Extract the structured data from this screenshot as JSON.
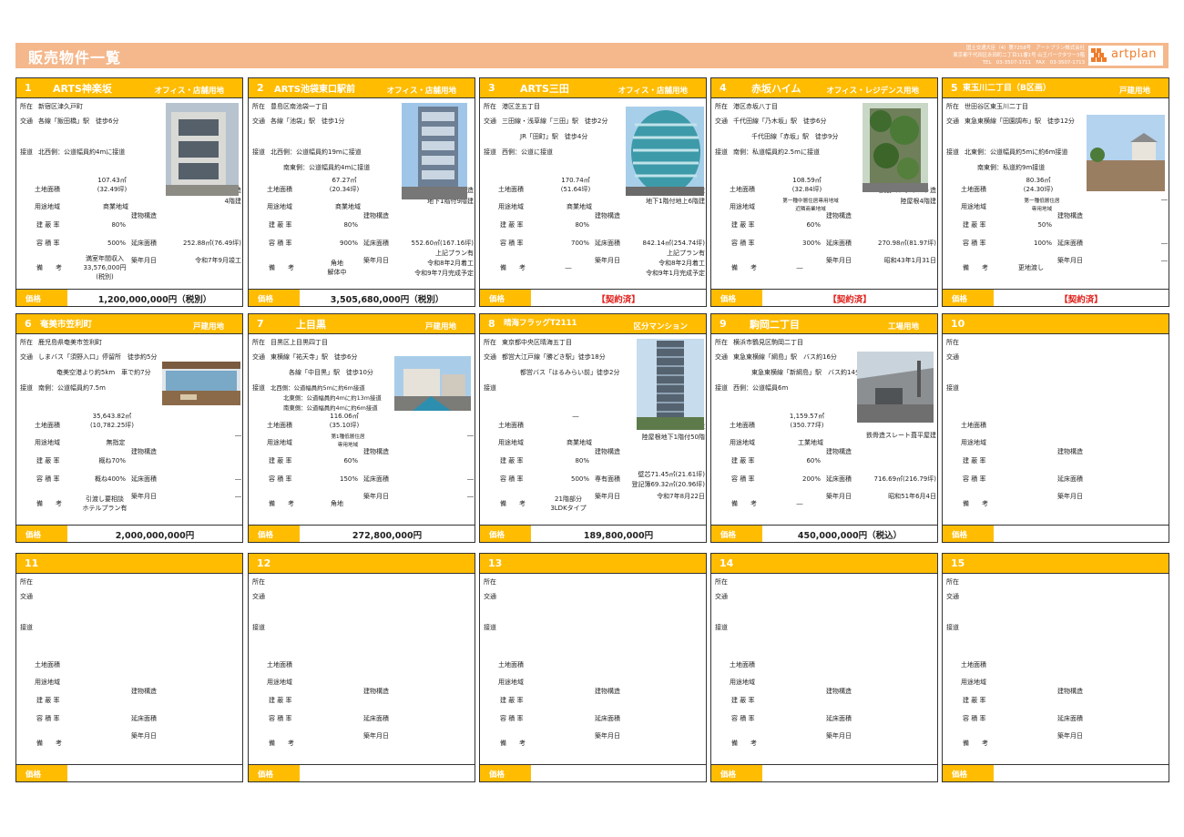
{
  "header": {
    "title": "販売物件一覧",
    "company_lines": [
      "国土交通大臣（4）第7258号　アートプラン株式会社",
      "東京都千代田区永田町二丁目11番1号 山王パークタワー3階",
      "TEL　03-3507-1711　FAX　03-3507-1713"
    ],
    "logo_text": "artplan"
  },
  "labels": {
    "address": "所在",
    "transit": "交通",
    "road": "接道",
    "land": "土地面積",
    "zoning": "用途地域",
    "bcr": "建 蔽 率",
    "far": "容 積 率",
    "remarks": "備　　考",
    "structure": "建物構造",
    "floor": "延床面積",
    "exclusive": "専有面積",
    "built": "築年月日",
    "price": "価格"
  },
  "listings": [
    {
      "num": "1",
      "name": "ARTS神楽坂",
      "type": "オフィス・店舗用地",
      "address": "新宿区津久戸町",
      "transit": [
        "各線「飯田橋」駅　徒歩6分"
      ],
      "road": [
        "北西側：公道幅員約4mに接道"
      ],
      "land": [
        "107.43㎡",
        "(32.49坪)"
      ],
      "zoning": [
        "商業地域"
      ],
      "bcr": "80%",
      "far": "500%",
      "remarks": [
        "満室年間収入",
        "33,576,000円",
        "(税別)"
      ],
      "structure": [
        "鉄筋コンクリート造",
        "4階建"
      ],
      "floor": [
        "252.88㎡(76.49坪)"
      ],
      "built": [
        "令和7年9月竣工"
      ],
      "price": "1,200,000,000円（税別）",
      "price_red": false
    },
    {
      "num": "2",
      "name": "ARTS池袋東口駅前",
      "type": "オフィス・店舗用地",
      "address": "豊島区南池袋一丁目",
      "transit": [
        "各線「池袋」駅　徒歩1分"
      ],
      "road": [
        "北西側：公道幅員約19mに接道",
        "南東側：公道幅員約4mに接道"
      ],
      "land": [
        "67.27㎡",
        "(20.34坪)"
      ],
      "zoning": [
        "商業地域"
      ],
      "bcr": "80%",
      "far": "900%",
      "remarks": [
        "角地",
        "解体中"
      ],
      "structure": [
        "鉄骨造",
        "地下1階付9階建"
      ],
      "floor": [
        "552.60㎡(167.16坪)"
      ],
      "built": [
        "上記プラン有",
        "令和8年2月着工",
        "令和9年7月完成予定"
      ],
      "price": "3,505,680,000円（税別）",
      "price_red": false
    },
    {
      "num": "3",
      "name": "ARTS三田",
      "type": "オフィス・店舗用地",
      "address": "港区芝五丁目",
      "transit": [
        "三田線・浅草線「三田」駅　徒歩2分",
        "JR「田町」駅　徒歩4分"
      ],
      "road": [
        "西側：公道に接道"
      ],
      "land": [
        "170.74㎡",
        "(51.64坪)"
      ],
      "zoning": [
        "商業地域"
      ],
      "bcr": "80%",
      "far": "700%",
      "remarks": [
        "―"
      ],
      "structure": [
        "鉄骨鉄筋コンクリート造",
        "地下1階付地上6階建"
      ],
      "floor": [
        "842.14㎡(254.74坪)"
      ],
      "built": [
        "上記プラン有",
        "令和8年2月着工",
        "令和9年1月完成予定"
      ],
      "price": "【契約済】",
      "price_red": true
    },
    {
      "num": "4",
      "name": "赤坂ハイム",
      "type": "オフィス・レジデンス用地",
      "address": "港区赤坂八丁目",
      "transit": [
        "千代田線「乃木坂」駅　徒歩6分",
        "千代田線「赤坂」駅　徒歩9分"
      ],
      "road": [
        "南側：私道幅員約2.5mに接道"
      ],
      "land": [
        "108.59㎡",
        "(32.84坪)"
      ],
      "zoning": [
        "第一種中層住居専用地域",
        "近隣商業地域"
      ],
      "bcr": "60%",
      "far": "300%",
      "remarks": [
        "―"
      ],
      "structure": [
        "鉄筋コンクリート造",
        "陸屋根4階建"
      ],
      "floor": [
        "270.98㎡(81.97坪)"
      ],
      "built": [
        "昭和43年1月31日"
      ],
      "price": "【契約済】",
      "price_red": true
    },
    {
      "num": "5",
      "name": "東玉川二丁目（B区画）",
      "type": "戸建用地",
      "address": "世田谷区東玉川二丁目",
      "transit": [
        "東急東横線「田園調布」駅　徒歩12分"
      ],
      "road": [
        "北東側：公道幅員約5mに約6m接道",
        "南東側：私道約9m接道"
      ],
      "land": [
        "80.36㎡",
        "(24.30坪)"
      ],
      "zoning": [
        "第一種低層住居",
        "専用地域"
      ],
      "bcr": "50%",
      "far": "100%",
      "remarks": [
        "更地渡し"
      ],
      "structure": [
        "―"
      ],
      "floor": [
        "―"
      ],
      "built": [
        "―"
      ],
      "price": "【契約済】",
      "price_red": true
    },
    {
      "num": "6",
      "name": "奄美市笠利町",
      "type": "戸建用地",
      "address": "鹿児島県奄美市笠利町",
      "transit": [
        "しまバス「須野入口」停留所　徒歩約5分",
        "奄美空港より約5km　車で約7分"
      ],
      "road": [
        "南側：公道幅員約7.5m"
      ],
      "land": [
        "35,643.82㎡",
        "(10,782.25坪)"
      ],
      "zoning": [
        "無指定"
      ],
      "bcr": "概ね70%",
      "far": "概ね400%",
      "remarks": [
        "引渡し要相談",
        "ホテルプラン有"
      ],
      "structure": [
        "―"
      ],
      "floor": [
        "―"
      ],
      "built": [
        "―"
      ],
      "price": "2,000,000,000円",
      "price_red": false
    },
    {
      "num": "7",
      "name": "上目黒",
      "type": "戸建用地",
      "address": "目黒区上目黒四丁目",
      "transit": [
        "東横線「祐天寺」駅　徒歩6分",
        "各線「中目黒」駅　徒歩10分"
      ],
      "road": [
        "北西側：公道幅員約5mに約6m接道",
        "北東側：公道幅員約4mに約13m接道",
        "南東側：公道幅員約4mに約6m接道"
      ],
      "land": [
        "116.06㎡",
        "(35.10坪)"
      ],
      "zoning": [
        "第1種低層住居",
        "専用地域"
      ],
      "bcr": "60%",
      "far": "150%",
      "remarks": [
        "角地"
      ],
      "structure": [
        "―"
      ],
      "floor": [
        "―"
      ],
      "built": [
        "―"
      ],
      "price": "272,800,000円",
      "price_red": false
    },
    {
      "num": "8",
      "name": "晴海フラッグT2111",
      "type": "区分マンション",
      "address": "東京都中央区晴海五丁目",
      "transit": [
        "都営大江戸線「勝どき駅」徒歩18分",
        "都営バス「はるみらい前」徒歩2分"
      ],
      "road": [],
      "land": [
        "―"
      ],
      "zoning": [
        "商業地域"
      ],
      "bcr": "80%",
      "far": "500%",
      "remarks": [
        "21階部分",
        "3LDKタイプ"
      ],
      "structure": [
        "鉄筋コンクリート造",
        "陸屋根地下1階付50階"
      ],
      "exclusive": [
        "壁芯71.45㎡(21.61坪)",
        "登記簿69.32㎡(20.96坪)"
      ],
      "built": [
        "令和7年8月22日"
      ],
      "price": "189,800,000円",
      "price_red": false
    },
    {
      "num": "9",
      "name": "駒岡二丁目",
      "type": "工場用地",
      "address": "横浜市鶴見区駒岡二丁目",
      "transit": [
        "東急東横線「綱島」駅　バス約16分",
        "東急東横線「新綱島」駅　バス約14分"
      ],
      "road": [
        "西側：公道幅員6m"
      ],
      "land": [
        "1,159.57㎡",
        "(350.77坪)"
      ],
      "zoning": [
        "工業地域"
      ],
      "bcr": "60%",
      "far": "200%",
      "remarks": [
        "―"
      ],
      "structure": [
        "鉄骨造スレート葺平屋建"
      ],
      "floor": [
        "716.69㎡(216.79坪)"
      ],
      "built": [
        "昭和51年6月4日"
      ],
      "price": "450,000,000円（税込）",
      "price_red": false
    },
    {
      "num": "10"
    },
    {
      "num": "11"
    },
    {
      "num": "12"
    },
    {
      "num": "13"
    },
    {
      "num": "14"
    },
    {
      "num": "15"
    }
  ]
}
